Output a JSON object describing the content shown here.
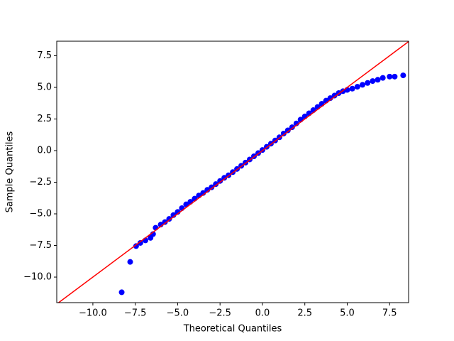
{
  "chart_data": {
    "type": "scatter",
    "x_label": "Theoretical Quantiles",
    "y_label": "Sample Quantiles",
    "color": "#0000ff",
    "line_color": "#ff0000",
    "xlim": [
      -12.13,
      8.62
    ],
    "ylim": [
      -12.02,
      8.65
    ],
    "xticks": [
      {
        "value": -10,
        "label": "−10.0"
      },
      {
        "value": -7.5,
        "label": "−7.5"
      },
      {
        "value": -5,
        "label": "−5.0"
      },
      {
        "value": -2.5,
        "label": "−2.5"
      },
      {
        "value": 0,
        "label": "0.0"
      },
      2.5,
      {
        "value": 5,
        "label": "5.0"
      },
      7.5
    ],
    "yticks": [
      {
        "value": -10,
        "label": "−10.0"
      },
      {
        "value": -7.5,
        "label": "−7.5"
      },
      {
        "value": -5,
        "label": "−5.0"
      },
      {
        "value": -2.5,
        "label": "−2.5"
      },
      {
        "value": 0,
        "label": "0.0"
      },
      2.5,
      {
        "value": 5,
        "label": "5.0"
      },
      7.5
    ],
    "x": [
      -8.3,
      -7.8,
      -7.45,
      -7.2,
      -6.9,
      -6.6,
      -6.45,
      -6.3,
      -6.0,
      -5.75,
      -5.5,
      -5.25,
      -5.0,
      -4.75,
      -4.5,
      -4.25,
      -4.0,
      -3.75,
      -3.5,
      -3.25,
      -3.0,
      -2.75,
      -2.5,
      -2.25,
      -2.0,
      -1.75,
      -1.5,
      -1.25,
      -1.0,
      -0.75,
      -0.5,
      -0.25,
      0,
      0.25,
      0.5,
      0.75,
      1.0,
      1.25,
      1.5,
      1.75,
      2.0,
      2.25,
      2.5,
      2.75,
      3.0,
      3.25,
      3.5,
      3.75,
      4.0,
      4.25,
      4.5,
      4.75,
      5.0,
      5.3,
      5.6,
      5.9,
      6.2,
      6.5,
      6.8,
      7.1,
      7.5,
      7.8,
      8.3
    ],
    "values": [
      -11.2,
      -8.8,
      -7.55,
      -7.3,
      -7.1,
      -6.9,
      -6.6,
      -6.1,
      -5.85,
      -5.65,
      -5.4,
      -5.1,
      -4.85,
      -4.55,
      -4.25,
      -4.05,
      -3.8,
      -3.55,
      -3.35,
      -3.1,
      -2.9,
      -2.65,
      -2.4,
      -2.15,
      -1.95,
      -1.7,
      -1.45,
      -1.2,
      -0.95,
      -0.7,
      -0.45,
      -0.2,
      0.05,
      0.3,
      0.55,
      0.8,
      1.05,
      1.35,
      1.6,
      1.85,
      2.15,
      2.45,
      2.7,
      2.95,
      3.2,
      3.45,
      3.7,
      3.95,
      4.15,
      4.35,
      4.55,
      4.7,
      4.8,
      4.9,
      5.05,
      5.2,
      5.35,
      5.5,
      5.6,
      5.75,
      5.85,
      5.85,
      5.95
    ]
  }
}
